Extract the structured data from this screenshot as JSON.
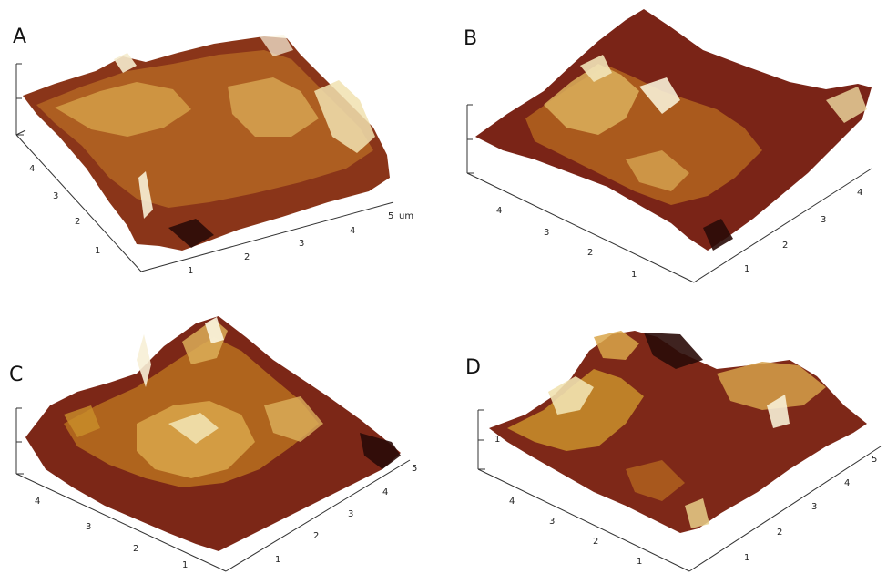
{
  "figure": {
    "panels": [
      {
        "id": "A",
        "label": "A",
        "axis_ticks_left": [
          "4",
          "3",
          "2",
          "1"
        ],
        "axis_ticks_right": [
          "1",
          "2",
          "3",
          "4",
          "5"
        ],
        "unit": "um"
      },
      {
        "id": "B",
        "label": "B",
        "axis_ticks_left": [
          "4",
          "3",
          "2",
          "1"
        ],
        "axis_ticks_right": [
          "1",
          "2",
          "3",
          "4"
        ],
        "unit": ""
      },
      {
        "id": "C",
        "label": "C",
        "axis_ticks_left": [
          "4",
          "3",
          "2",
          "1"
        ],
        "axis_ticks_right": [
          "1",
          "2",
          "3",
          "4",
          "5"
        ],
        "unit": ""
      },
      {
        "id": "D",
        "label": "D",
        "axis_ticks_left": [
          "4",
          "3",
          "2",
          "1"
        ],
        "axis_ticks_right": [
          "1",
          "2",
          "3",
          "4",
          "5"
        ],
        "unit": ""
      }
    ],
    "colors": {
      "deep": "#3a0f0a",
      "dark": "#6e1e16",
      "mid": "#a1471c",
      "gold": "#c98f2b",
      "light": "#e8cf8a",
      "peak": "#fbf5df"
    }
  }
}
